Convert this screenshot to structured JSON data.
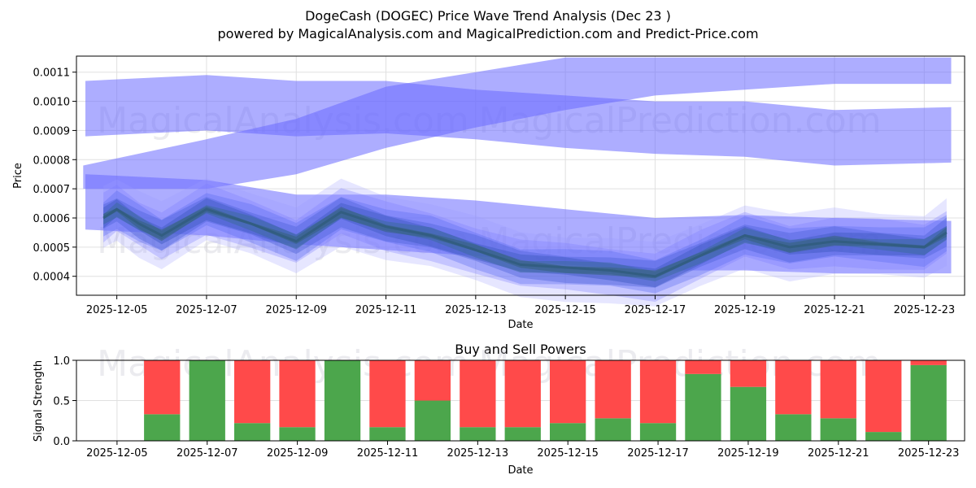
{
  "title_line1": "DogeCash (DOGEC) Price Wave Trend Analysis (Dec 23 )",
  "title_line2": "powered by MagicalAnalysis.com and MagicalPrediction.com and Predict-Price.com",
  "watermarks": [
    "MagicalAnalysis.com",
    "MagicalPrediction.com"
  ],
  "colors": {
    "band": "#6a6aff",
    "wave": "#2f4fbf",
    "buy": "#4ca64c",
    "sell": "#ff4a4a",
    "grid": "#e0e0e0"
  },
  "chart_data": [
    {
      "type": "area",
      "title": "",
      "xlabel": "Date",
      "ylabel": "Price",
      "xlim_days": [
        -0.9,
        18.9
      ],
      "ylim": [
        0.000335,
        0.001155
      ],
      "x_tick_day_offsets": [
        0,
        2,
        4,
        6,
        8,
        10,
        12,
        14,
        16,
        18
      ],
      "x_tick_labels": [
        "2025-12-05",
        "2025-12-07",
        "2025-12-09",
        "2025-12-11",
        "2025-12-13",
        "2025-12-15",
        "2025-12-17",
        "2025-12-19",
        "2025-12-21",
        "2025-12-23"
      ],
      "y_ticks": [
        0.0004,
        0.0005,
        0.0006,
        0.0007,
        0.0008,
        0.0009,
        0.001,
        0.0011
      ],
      "y_tick_labels": [
        "0.0004",
        "0.0005",
        "0.0006",
        "0.0007",
        "0.0008",
        "0.0009",
        "0.0010",
        "0.0011"
      ],
      "wave_days": [
        -0.3,
        0,
        0.5,
        1,
        2,
        3,
        4,
        5,
        6,
        7,
        8,
        9,
        10,
        11,
        12,
        13,
        14,
        15,
        16,
        17,
        18,
        18.5
      ],
      "wave_mid": [
        0.0006,
        0.00063,
        0.00058,
        0.00054,
        0.00063,
        0.00058,
        0.00052,
        0.00062,
        0.00057,
        0.00054,
        0.00049,
        0.00044,
        0.00043,
        0.00042,
        0.0004,
        0.00047,
        0.00054,
        0.0005,
        0.00052,
        0.00051,
        0.0005,
        0.00055
      ],
      "bands": [
        {
          "name": "upper-flat",
          "x": [
            -0.7,
            18.6
          ],
          "lower": [
            0.00088,
            0.00079
          ],
          "upper": [
            0.00107,
            0.00098
          ],
          "mid_x": [
            2,
            4,
            6,
            8,
            10,
            12,
            14,
            16
          ],
          "mid_low": [
            0.0009,
            0.00088,
            0.00089,
            0.00087,
            0.00084,
            0.00082,
            0.00081,
            0.00078
          ],
          "mid_high": [
            0.00109,
            0.00107,
            0.00107,
            0.00104,
            0.00102,
            0.001,
            0.001,
            0.00097
          ]
        },
        {
          "name": "rising",
          "x": [
            -0.75,
            18.6
          ],
          "lower": [
            0.0007,
            0.00106
          ],
          "upper": [
            0.00078,
            0.00115
          ],
          "mid_x": [
            2,
            4,
            6,
            8,
            10,
            12,
            14,
            16
          ],
          "mid_low": [
            0.0007,
            0.00075,
            0.00084,
            0.00091,
            0.00097,
            0.00102,
            0.00104,
            0.00106
          ],
          "mid_high": [
            0.00087,
            0.00094,
            0.00105,
            0.0011,
            0.00115,
            0.00115,
            0.00115,
            0.00115
          ]
        },
        {
          "name": "lower-falling",
          "x": [
            -0.7,
            18.6
          ],
          "lower": [
            0.00056,
            0.00041
          ],
          "upper": [
            0.00075,
            0.00059
          ],
          "mid_x": [
            2,
            4,
            6,
            8,
            10,
            12,
            14,
            16
          ],
          "mid_low": [
            0.00054,
            0.00051,
            0.00049,
            0.00047,
            0.00044,
            0.00042,
            0.00042,
            0.00041
          ],
          "mid_high": [
            0.00073,
            0.00068,
            0.00068,
            0.00066,
            0.00063,
            0.0006,
            0.00061,
            0.0006
          ]
        }
      ]
    },
    {
      "type": "bar",
      "title": "Buy and Sell Powers",
      "xlabel": "Date",
      "ylabel": "Signal Strength",
      "xlim_days": [
        -0.9,
        18.8
      ],
      "ylim": [
        0.0,
        1.0
      ],
      "y_ticks": [
        0.0,
        0.5,
        1.0
      ],
      "y_tick_labels": [
        "0.0",
        "0.5",
        "1.0"
      ],
      "x_tick_day_offsets": [
        0,
        2,
        4,
        6,
        8,
        10,
        12,
        14,
        16,
        18
      ],
      "x_tick_labels": [
        "2025-12-05",
        "2025-12-07",
        "2025-12-09",
        "2025-12-11",
        "2025-12-13",
        "2025-12-15",
        "2025-12-17",
        "2025-12-19",
        "2025-12-21",
        "2025-12-23"
      ],
      "bar_day_offsets": [
        1,
        2,
        3,
        4,
        5,
        6,
        7,
        8,
        9,
        10,
        11,
        12,
        13,
        14,
        15,
        16,
        17,
        18
      ],
      "buy": [
        0.33,
        1.0,
        0.22,
        0.17,
        1.0,
        0.17,
        0.5,
        0.17,
        0.17,
        0.22,
        0.28,
        0.22,
        0.83,
        0.67,
        0.33,
        0.28,
        0.11,
        0.94
      ],
      "sell": [
        0.67,
        0.0,
        0.78,
        0.83,
        0.0,
        0.83,
        0.5,
        0.83,
        0.83,
        0.78,
        0.72,
        0.78,
        0.17,
        0.33,
        0.67,
        0.72,
        0.89,
        0.06
      ]
    }
  ]
}
